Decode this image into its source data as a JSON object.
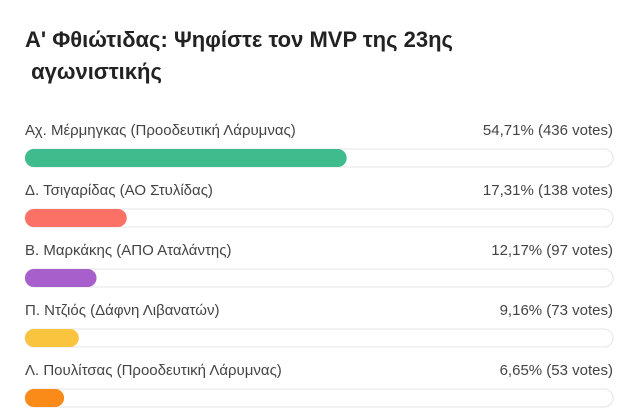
{
  "chart_data": {
    "type": "bar",
    "title": "Α' Φθιώτιδας: Ψηφίστε τον MVP της 23ης αγωνιστικής",
    "categories": [
      "Αχ. Μέρμηγκας (Προοδευτική Λάρυμνας)",
      "Δ. Τσιγαρίδας (ΑΟ Στυλίδας)",
      "Β. Μαρκάκης (ΑΠΟ Αταλάντης)",
      "Π. Ντζιός (Δάφνη Λιβανατών)",
      "Λ. Πουλίτσας (Προοδευτική Λάρυμνας)"
    ],
    "values": [
      54.71,
      17.31,
      12.17,
      9.16,
      6.65
    ],
    "value_labels": [
      "54,71% (436 votes)",
      "17,31% (138 votes)",
      "12,17% (97 votes)",
      "9,16% (73 votes)",
      "6,65% (53 votes)"
    ],
    "colors": [
      "#3fbc8e",
      "#fb7165",
      "#a760cb",
      "#fbc43e",
      "#fb8b18"
    ],
    "xlim": [
      0,
      100
    ]
  }
}
